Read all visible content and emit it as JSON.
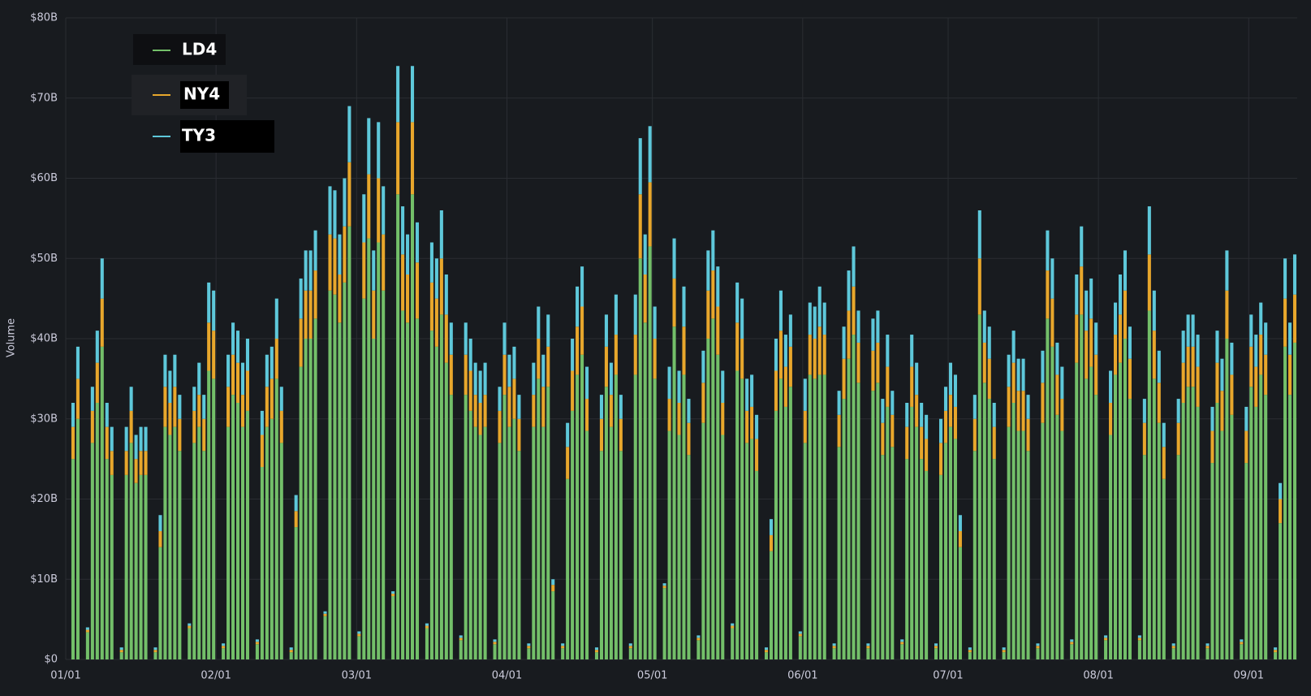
{
  "chart_data": {
    "type": "stacked-bar",
    "y_label": "Volume",
    "ylim": [
      0,
      80
    ],
    "yticks": [
      {
        "value": 0,
        "label": "$0"
      },
      {
        "value": 10,
        "label": "$10B"
      },
      {
        "value": 20,
        "label": "$20B"
      },
      {
        "value": 30,
        "label": "$30B"
      },
      {
        "value": 40,
        "label": "$40B"
      },
      {
        "value": 50,
        "label": "$50B"
      },
      {
        "value": 60,
        "label": "$60B"
      },
      {
        "value": 70,
        "label": "$70B"
      },
      {
        "value": 80,
        "label": "$80B"
      }
    ],
    "grid": true,
    "legend": "top-left",
    "categories": [
      "01/01",
      null,
      null,
      null,
      null,
      null,
      null,
      null,
      null,
      null,
      null,
      null,
      null,
      null,
      null,
      null,
      null,
      null,
      null,
      null,
      null,
      null,
      null,
      null,
      null,
      null,
      null,
      null,
      null,
      null,
      null,
      "02/01",
      null,
      null,
      null,
      null,
      null,
      null,
      null,
      null,
      null,
      null,
      null,
      null,
      null,
      null,
      null,
      null,
      null,
      null,
      null,
      null,
      null,
      null,
      null,
      null,
      null,
      null,
      null,
      null,
      "03/01",
      null,
      null,
      null,
      null,
      null,
      null,
      null,
      null,
      null,
      null,
      null,
      null,
      null,
      null,
      null,
      null,
      null,
      null,
      null,
      null,
      null,
      null,
      null,
      null,
      null,
      null,
      null,
      null,
      null,
      null,
      "04/01",
      null,
      null,
      null,
      null,
      null,
      null,
      null,
      null,
      null,
      null,
      null,
      null,
      null,
      null,
      null,
      null,
      null,
      null,
      null,
      null,
      null,
      null,
      null,
      null,
      null,
      null,
      null,
      null,
      null,
      "05/01",
      null,
      null,
      null,
      null,
      null,
      null,
      null,
      null,
      null,
      null,
      null,
      null,
      null,
      null,
      null,
      null,
      null,
      null,
      null,
      null,
      null,
      null,
      null,
      null,
      null,
      null,
      null,
      null,
      null,
      null,
      "06/01",
      null,
      null,
      null,
      null,
      null,
      null,
      null,
      null,
      null,
      null,
      null,
      null,
      null,
      null,
      null,
      null,
      null,
      null,
      null,
      null,
      null,
      null,
      null,
      null,
      null,
      null,
      null,
      null,
      null,
      "07/01",
      null,
      null,
      null,
      null,
      null,
      null,
      null,
      null,
      null,
      null,
      null,
      null,
      null,
      null,
      null,
      null,
      null,
      null,
      null,
      null,
      null,
      null,
      null,
      null,
      null,
      null,
      null,
      null,
      null,
      null,
      "08/01",
      null,
      null,
      null,
      null,
      null,
      null,
      null,
      null,
      null,
      null,
      null,
      null,
      null,
      null,
      null,
      null,
      null,
      null,
      null,
      null,
      null,
      null,
      null,
      null,
      null,
      null,
      null,
      null,
      null,
      null,
      "09/01",
      null,
      null,
      null,
      null,
      null,
      null,
      null,
      null,
      null
    ],
    "series": [
      {
        "name": "LD4",
        "color": "#73bf69",
        "values": [
          0,
          25,
          30,
          0,
          3.4,
          27,
          32,
          39,
          25,
          23,
          0,
          0.9,
          23,
          27,
          22,
          23,
          23,
          0,
          0.9,
          14,
          29,
          28,
          29,
          26,
          0,
          3.9,
          27,
          29,
          26,
          36,
          35,
          0,
          1.4,
          29,
          33,
          32,
          29,
          31,
          0,
          1.9,
          24,
          29,
          30,
          35,
          27,
          0,
          0.9,
          16.5,
          36.5,
          40,
          40,
          42.5,
          0,
          5.4,
          46,
          45.5,
          42,
          47,
          54,
          0,
          2.9,
          45,
          52.5,
          40,
          52,
          46,
          0,
          7.9,
          58,
          43.5,
          42,
          58,
          42.5,
          0,
          3.9,
          41,
          39,
          43,
          37,
          33,
          0,
          2.4,
          33,
          31,
          29,
          28,
          29,
          0,
          1.9,
          27,
          33,
          29,
          30,
          26,
          0,
          1.4,
          29,
          35,
          29,
          34,
          8.5,
          0,
          1.4,
          22.5,
          31,
          35.5,
          38,
          28.5,
          0,
          0.9,
          26,
          34,
          29,
          35.5,
          26,
          0,
          1.4,
          35.5,
          50,
          42,
          51.5,
          35,
          0,
          8.9,
          28.5,
          41.5,
          28,
          35.5,
          25.5,
          0,
          2.4,
          29.5,
          40,
          42.5,
          38,
          28,
          0,
          3.9,
          36,
          35,
          27,
          27.5,
          23.5,
          0,
          0.9,
          13.5,
          31,
          35,
          31.5,
          34,
          0,
          2.9,
          27,
          35.5,
          35,
          35.5,
          35.5,
          0,
          1.4,
          26.5,
          32.5,
          37.5,
          40.5,
          34.5,
          0,
          1.4,
          33.5,
          34.5,
          25.5,
          31.5,
          26.5,
          0,
          1.9,
          25,
          31.5,
          29,
          25,
          23.5,
          0,
          1.4,
          23,
          27,
          29,
          27.5,
          14,
          0,
          0.9,
          26,
          43,
          34.5,
          32.5,
          25,
          0,
          0.9,
          29,
          32,
          28.5,
          28.5,
          26,
          0,
          1.4,
          29.5,
          42.5,
          39,
          30.5,
          28.5,
          0,
          1.9,
          37,
          43,
          35,
          36.5,
          33,
          0,
          2.4,
          28,
          35.5,
          37,
          40,
          32.5,
          0,
          2.4,
          25.5,
          43.5,
          35,
          29.5,
          22.5,
          0,
          1.4,
          25.5,
          32,
          34,
          34,
          31.5,
          0,
          1.4,
          24.5,
          32,
          28.5,
          40,
          30.5,
          0,
          1.9,
          24.5,
          34,
          31.5,
          35.5,
          33,
          0,
          0.9,
          17,
          39,
          33,
          39.5
        ]
      },
      {
        "name": "NY4",
        "color": "#e8a72c",
        "values": [
          0,
          4,
          5,
          0,
          0.3,
          4,
          5,
          6,
          4,
          3,
          0,
          0.3,
          3,
          4,
          3,
          3,
          3,
          0,
          0.3,
          2,
          5,
          4,
          5,
          4,
          0,
          0.3,
          4,
          4,
          4,
          6,
          6,
          0,
          0.3,
          5,
          5,
          5,
          4,
          5,
          0,
          0.3,
          4,
          5,
          5,
          5,
          4,
          0,
          0.3,
          2,
          6,
          6,
          6,
          6,
          0,
          0.3,
          7,
          7,
          6,
          7,
          8,
          0,
          0.3,
          7,
          8,
          6,
          8,
          7,
          0,
          0.3,
          9,
          7,
          6,
          9,
          7,
          0,
          0.3,
          6,
          6,
          7,
          6,
          5,
          0,
          0.3,
          5,
          5,
          4,
          4,
          4,
          0,
          0.3,
          4,
          5,
          5,
          5,
          4,
          0,
          0.3,
          4,
          5,
          5,
          5,
          0.8,
          0,
          0.3,
          4,
          5,
          6,
          6,
          4,
          0,
          0.3,
          4,
          5,
          4,
          5,
          4,
          0,
          0.3,
          5,
          8,
          6,
          8,
          5,
          0,
          0.3,
          4,
          6,
          4,
          6,
          4,
          0,
          0.3,
          5,
          6,
          6,
          6,
          4,
          0,
          0.3,
          6,
          5,
          4,
          4,
          4,
          0,
          0.3,
          2,
          5,
          6,
          5,
          5,
          0,
          0.3,
          4,
          5,
          5,
          6,
          5,
          0,
          0.3,
          4,
          5,
          6,
          6,
          5,
          0,
          0.3,
          5,
          5,
          4,
          5,
          4,
          0,
          0.3,
          4,
          5,
          4,
          4,
          4,
          0,
          0.3,
          4,
          4,
          4,
          4,
          2,
          0,
          0.3,
          4,
          7,
          5,
          5,
          4,
          0,
          0.3,
          5,
          5,
          5,
          5,
          4,
          0,
          0.3,
          5,
          6,
          6,
          5,
          4,
          0,
          0.3,
          6,
          6,
          6,
          6,
          5,
          0,
          0.3,
          4,
          5,
          6,
          6,
          5,
          0,
          0.3,
          4,
          7,
          6,
          5,
          4,
          0,
          0.3,
          4,
          5,
          5,
          5,
          5,
          0,
          0.3,
          4,
          5,
          5,
          6,
          5,
          0,
          0.3,
          4,
          5,
          5,
          5,
          5,
          0,
          0.3,
          3,
          6,
          5,
          6
        ]
      },
      {
        "name": "TY3",
        "color": "#5ec8da",
        "values": [
          0,
          3,
          4,
          0,
          0.3,
          3,
          4,
          5,
          3,
          3,
          0,
          0.3,
          3,
          3,
          3,
          3,
          3,
          0,
          0.3,
          2,
          4,
          4,
          4,
          3,
          0,
          0.3,
          3,
          4,
          3,
          5,
          5,
          0,
          0.3,
          4,
          4,
          4,
          4,
          4,
          0,
          0.3,
          3,
          4,
          4,
          5,
          3,
          0,
          0.3,
          2,
          5,
          5,
          5,
          5,
          0,
          0.3,
          6,
          6,
          5,
          6,
          7,
          0,
          0.3,
          6,
          7,
          5,
          7,
          6,
          0,
          0.3,
          7,
          6,
          5,
          7,
          5,
          0,
          0.3,
          5,
          5,
          6,
          5,
          4,
          0,
          0.3,
          4,
          4,
          4,
          4,
          4,
          0,
          0.3,
          3,
          4,
          4,
          4,
          3,
          0,
          0.3,
          4,
          4,
          4,
          4,
          0.7,
          0,
          0.3,
          3,
          4,
          5,
          5,
          4,
          0,
          0.3,
          3,
          4,
          4,
          5,
          3,
          0,
          0.3,
          5,
          7,
          5,
          7,
          4,
          0,
          0.3,
          4,
          5,
          4,
          5,
          3,
          0,
          0.3,
          4,
          5,
          5,
          5,
          4,
          0,
          0.3,
          5,
          5,
          4,
          4,
          3,
          0,
          0.3,
          2,
          4,
          5,
          4,
          4,
          0,
          0.3,
          4,
          4,
          4,
          5,
          4,
          0,
          0.3,
          3,
          4,
          5,
          5,
          4,
          0,
          0.3,
          4,
          4,
          3,
          4,
          3,
          0,
          0.3,
          3,
          4,
          4,
          3,
          3,
          0,
          0.3,
          3,
          3,
          4,
          4,
          2,
          0,
          0.3,
          3,
          6,
          4,
          4,
          3,
          0,
          0.3,
          4,
          4,
          4,
          4,
          3,
          0,
          0.3,
          4,
          5,
          5,
          4,
          4,
          0,
          0.3,
          5,
          5,
          5,
          5,
          4,
          0,
          0.3,
          4,
          4,
          5,
          5,
          4,
          0,
          0.3,
          3,
          6,
          5,
          4,
          3,
          0,
          0.3,
          3,
          4,
          4,
          4,
          4,
          0,
          0.3,
          3,
          4,
          4,
          5,
          4,
          0,
          0.3,
          3,
          4,
          4,
          4,
          4,
          0,
          0.3,
          2,
          5,
          4,
          5
        ]
      }
    ]
  }
}
